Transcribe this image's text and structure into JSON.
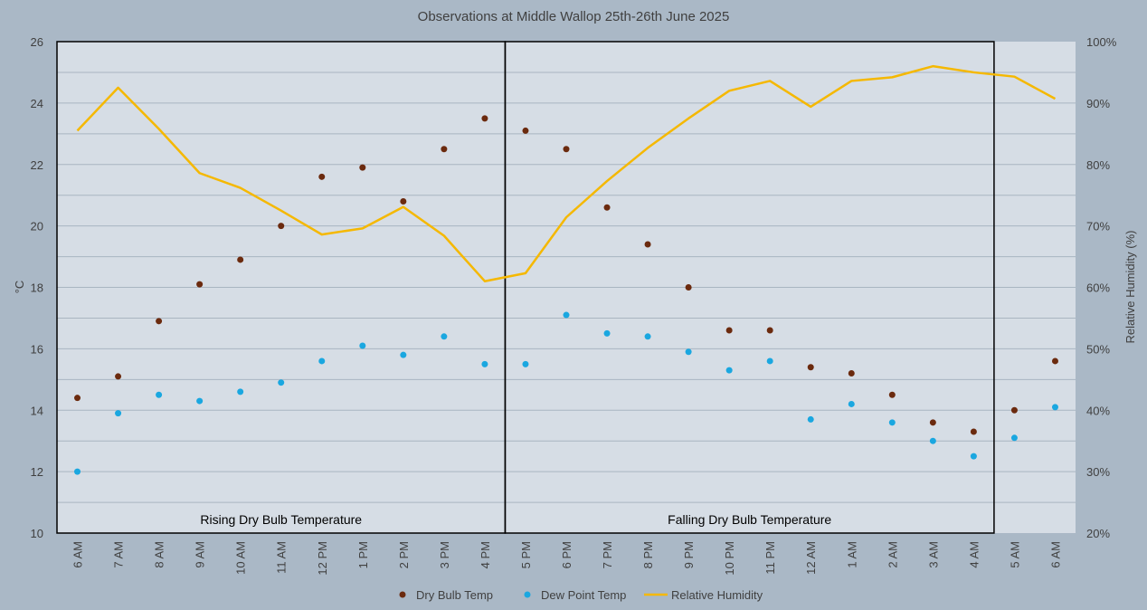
{
  "chart_data": {
    "type": "scatter+line",
    "title": "Observations at Middle Wallop 25th-26th June 2025",
    "categories": [
      "6 AM",
      "7 AM",
      "8 AM",
      "9 AM",
      "10 AM",
      "11 AM",
      "12 PM",
      "1 PM",
      "2 PM",
      "3 PM",
      "4 PM",
      "5 PM",
      "6 PM",
      "7 PM",
      "8 PM",
      "9 PM",
      "10 PM",
      "11 PM",
      "12 AM",
      "1 AM",
      "2 AM",
      "3 AM",
      "4 AM",
      "5 AM",
      "6 AM"
    ],
    "y_left": {
      "label": "°C",
      "min": 10,
      "max": 26,
      "ticks": [
        "10",
        "12",
        "14",
        "16",
        "18",
        "20",
        "22",
        "24",
        "26"
      ]
    },
    "y_right": {
      "label": "Relative Humidity (%)",
      "min": 20,
      "max": 100,
      "ticks": [
        "20%",
        "30%",
        "40%",
        "50%",
        "60%",
        "70%",
        "80%",
        "90%",
        "100%"
      ]
    },
    "series": [
      {
        "name": "Dry Bulb Temp",
        "type": "scatter",
        "axis": "left",
        "color": "#6b2a0e",
        "values": [
          14.4,
          15.1,
          16.9,
          18.1,
          18.9,
          20.0,
          21.6,
          21.9,
          20.8,
          22.5,
          23.5,
          23.1,
          22.5,
          20.6,
          19.4,
          18.0,
          16.6,
          16.6,
          15.4,
          15.2,
          14.5,
          13.6,
          13.3,
          14.0,
          15.6
        ]
      },
      {
        "name": "Dew Point Temp",
        "type": "scatter",
        "axis": "left",
        "color": "#1aa7e0",
        "values": [
          12.0,
          13.9,
          14.5,
          14.3,
          14.6,
          14.9,
          15.6,
          16.1,
          15.8,
          16.4,
          15.5,
          15.5,
          17.1,
          16.5,
          16.4,
          15.9,
          15.3,
          15.6,
          13.7,
          14.2,
          13.6,
          13.0,
          12.5,
          13.1,
          14.1
        ]
      },
      {
        "name": "Relative Humidity",
        "type": "line",
        "axis": "right",
        "color": "#f5b800",
        "values": [
          85.5,
          92.5,
          85.8,
          78.6,
          76.2,
          72.5,
          68.6,
          69.6,
          73.1,
          68.4,
          61.0,
          62.3,
          71.4,
          77.3,
          82.7,
          87.5,
          92.0,
          93.6,
          89.4,
          93.6,
          94.2,
          96.0,
          95.0,
          94.3,
          90.7
        ]
      }
    ],
    "regions": [
      {
        "label": "Rising Dry Bulb Temperature",
        "from_index": 0,
        "to_index": 10
      },
      {
        "label": "Falling Dry Bulb Temperature",
        "from_index": 11,
        "to_index": 22
      }
    ],
    "legend_position": "bottom",
    "grid": true
  }
}
